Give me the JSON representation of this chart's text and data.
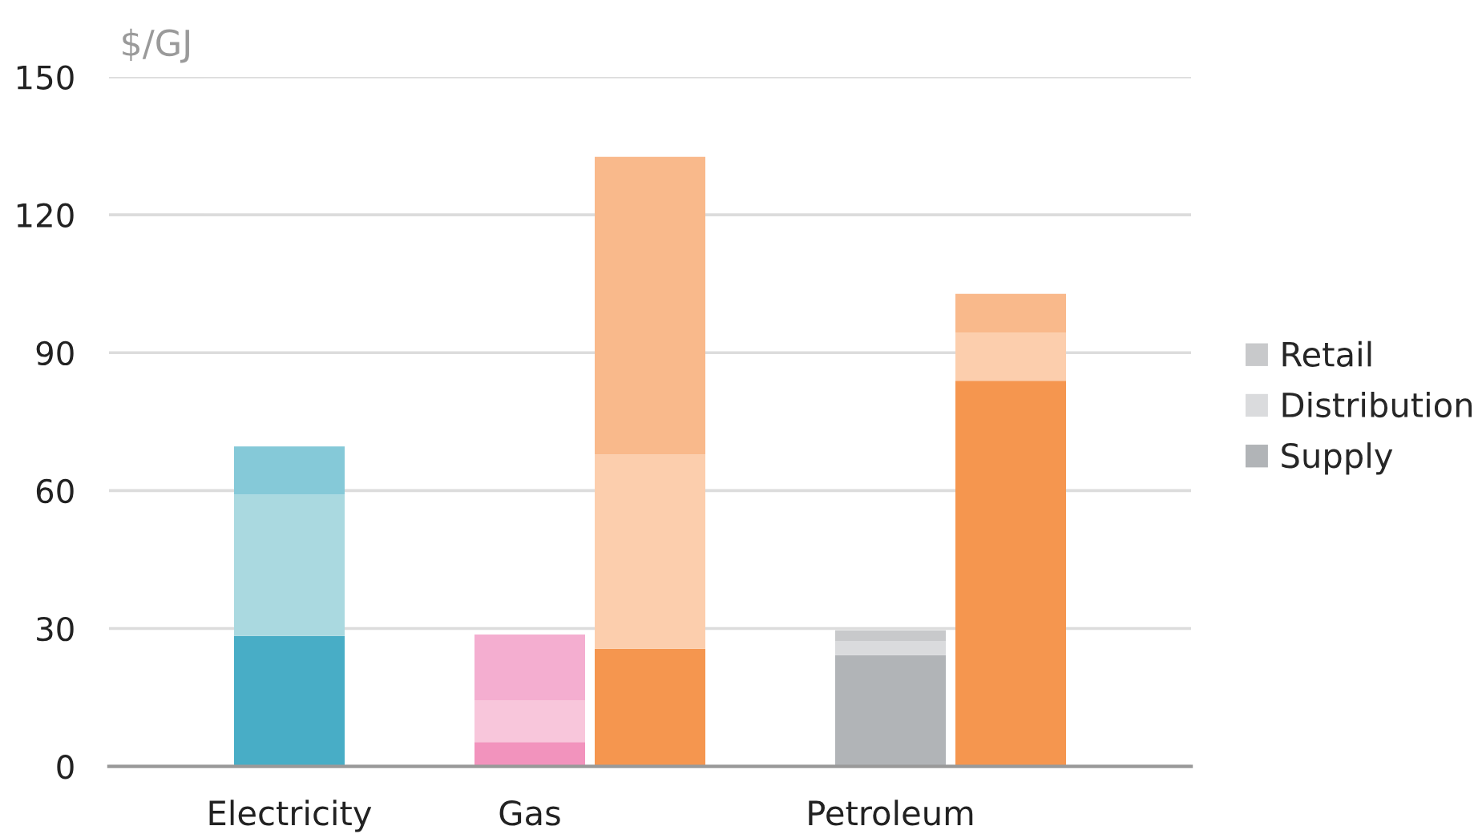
{
  "chart_data": {
    "type": "bar",
    "stacked": true,
    "ylabel": "$/GJ",
    "categories": [
      null,
      "Electricity",
      null,
      "Gas",
      null,
      null,
      "Petroleum",
      null,
      null
    ],
    "series": [
      {
        "name": "Supply",
        "color": "#b1b4b7",
        "values": [
          null,
          28.4,
          null,
          5.3,
          25.6,
          null,
          24.2,
          83.9,
          null
        ],
        "colors": [
          null,
          "#48adc6",
          null,
          "#f293bd",
          "#f5964f",
          null,
          "#b1b4b7",
          "#f5964f",
          null
        ]
      },
      {
        "name": "Distribution",
        "color": "#dadbdd",
        "values": [
          null,
          30.7,
          null,
          9.1,
          42.2,
          null,
          3.1,
          10.4,
          null
        ],
        "colors": [
          null,
          "#aad9e0",
          null,
          "#f8c6db",
          "#fccead",
          null,
          "#dadbdd",
          "#fccead",
          null
        ]
      },
      {
        "name": "Retail",
        "color": "#c8c9cb",
        "values": [
          null,
          10.5,
          null,
          14.3,
          64.8,
          null,
          2.3,
          8.5,
          null
        ],
        "colors": [
          null,
          "#85c9d8",
          null,
          "#f4aed0",
          "#f9b98b",
          null,
          "#c8c9cb",
          "#f9b98b",
          null
        ]
      }
    ],
    "ylim": [
      0,
      150
    ],
    "yticks": [
      0,
      30,
      60,
      90,
      120,
      150
    ],
    "grid": "y",
    "legend": "right"
  }
}
